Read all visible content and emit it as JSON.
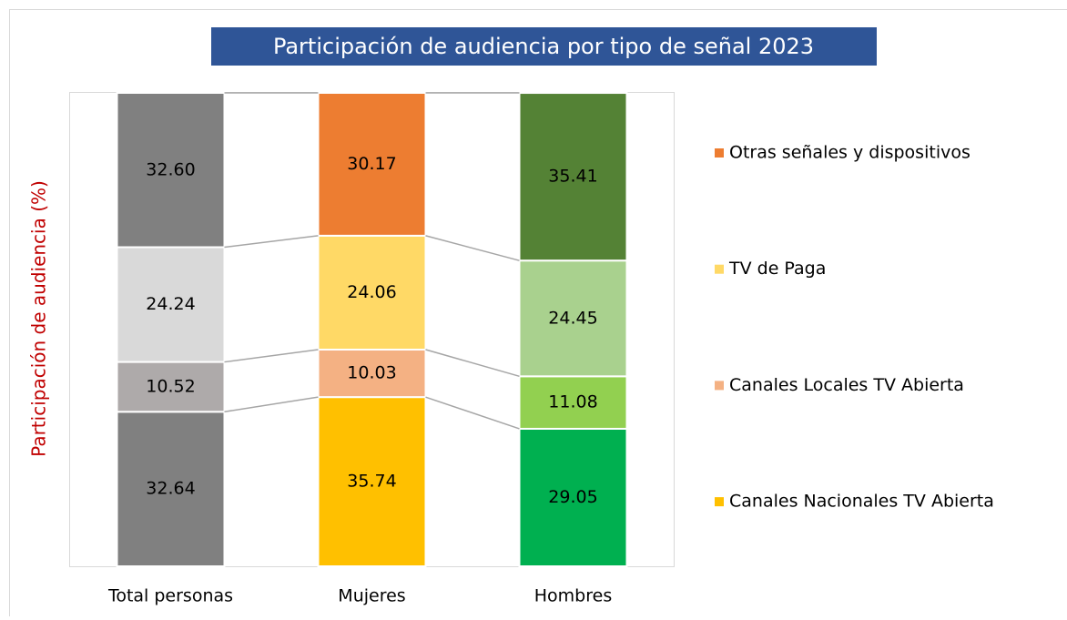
{
  "chart_data": {
    "type": "stacked_bar_100",
    "title": "Participación de audiencia por tipo de señal 2023",
    "y_label": "Participación de audiencia (%)",
    "categories": [
      "Total personas",
      "Mujeres",
      "Hombres"
    ],
    "ylim": [
      0,
      100
    ],
    "series": [
      {
        "name": "Canales Nacionales TV Abierta",
        "color": "#ffc000",
        "colors": [
          "#808080",
          "#ffc000",
          "#00b050"
        ],
        "values": [
          32.64,
          35.74,
          29.05
        ],
        "value_labels": [
          "32.64",
          "35.74",
          "29.05"
        ]
      },
      {
        "name": "Canales Locales TV Abierta",
        "color": "#f4b183",
        "colors": [
          "#aeaaaa",
          "#f4b183",
          "#92d050"
        ],
        "values": [
          10.52,
          10.03,
          11.08
        ],
        "value_labels": [
          "10.52",
          "10.03",
          "11.08"
        ]
      },
      {
        "name": "TV de Paga",
        "color": "#ffd966",
        "colors": [
          "#d9d9d9",
          "#ffd966",
          "#a9d18e"
        ],
        "values": [
          24.24,
          24.06,
          24.45
        ],
        "value_labels": [
          "24.24",
          "24.06",
          "24.45"
        ]
      },
      {
        "name": "Otras señales y dispositivos",
        "color": "#ed7d31",
        "colors": [
          "#808080",
          "#ed7d31",
          "#548235"
        ],
        "values": [
          32.6,
          30.17,
          35.41
        ],
        "value_labels": [
          "32.60",
          "30.17",
          "35.41"
        ]
      }
    ]
  }
}
